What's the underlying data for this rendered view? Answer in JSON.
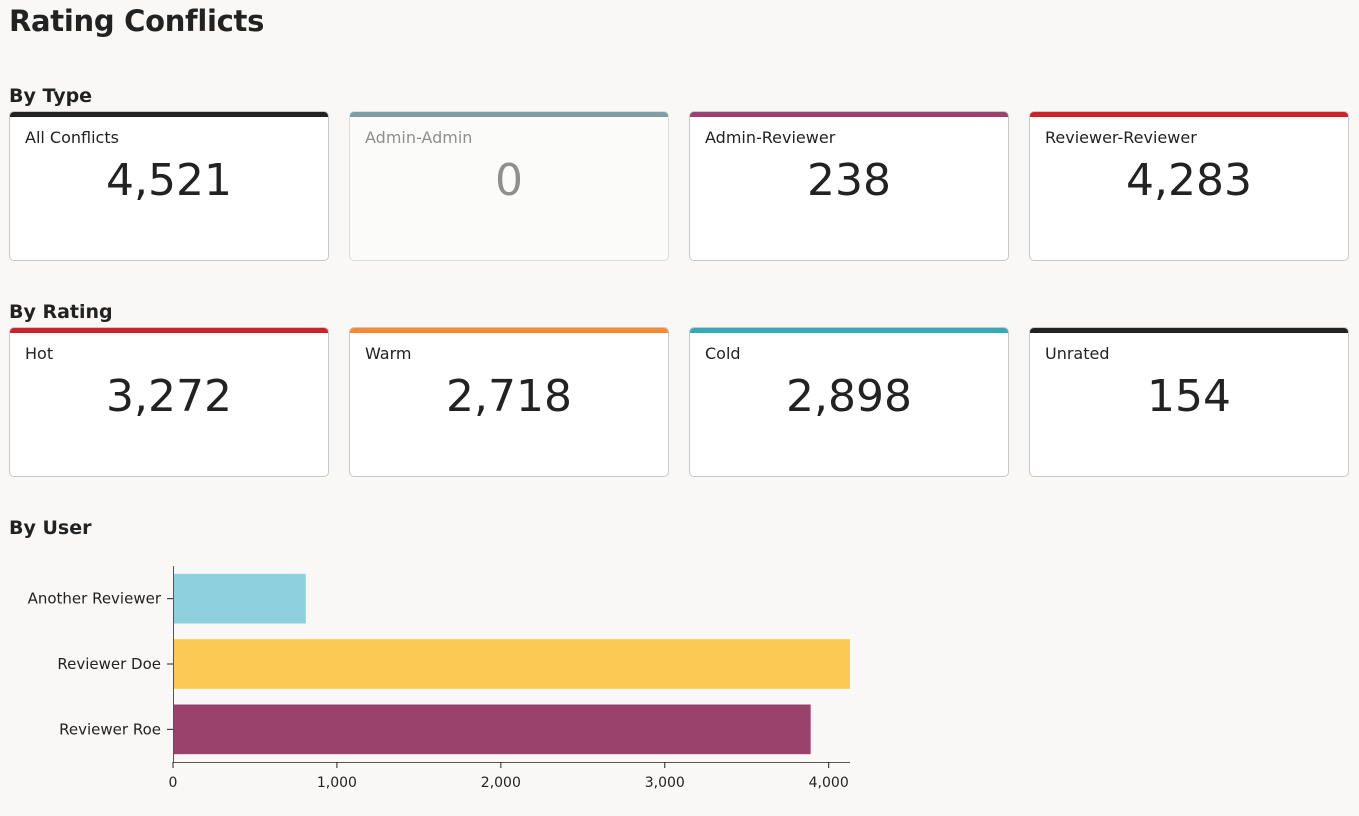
{
  "page": {
    "title": "Rating Conflicts"
  },
  "sections": {
    "by_type": "By Type",
    "by_rating": "By Rating",
    "by_user": "By User"
  },
  "by_type": [
    {
      "label": "All Conflicts",
      "value": "4,521",
      "accent": "#222222"
    },
    {
      "label": "Admin-Admin",
      "value": "0",
      "accent": "#7e9ea6"
    },
    {
      "label": "Admin-Reviewer",
      "value": "238",
      "accent": "#9b4170"
    },
    {
      "label": "Reviewer-Reviewer",
      "value": "4,283",
      "accent": "#cc2229"
    }
  ],
  "by_rating": [
    {
      "label": "Hot",
      "value": "3,272",
      "accent": "#cc2229"
    },
    {
      "label": "Warm",
      "value": "2,718",
      "accent": "#f58a33"
    },
    {
      "label": "Cold",
      "value": "2,898",
      "accent": "#36a9b9"
    },
    {
      "label": "Unrated",
      "value": "154",
      "accent": "#222222"
    }
  ],
  "chart_data": {
    "type": "bar",
    "orientation": "horizontal",
    "categories": [
      "Another Reviewer",
      "Reviewer Doe",
      "Reviewer Roe"
    ],
    "values": [
      810,
      4130,
      3890
    ],
    "colors": [
      "#8ed0de",
      "#fdc955",
      "#9a416c"
    ],
    "xticks": [
      0,
      1000,
      2000,
      3000,
      4000
    ],
    "xtick_labels": [
      "0",
      "1,000",
      "2,000",
      "3,000",
      "4,000"
    ],
    "xlim": [
      0,
      4130
    ],
    "grid": false
  }
}
